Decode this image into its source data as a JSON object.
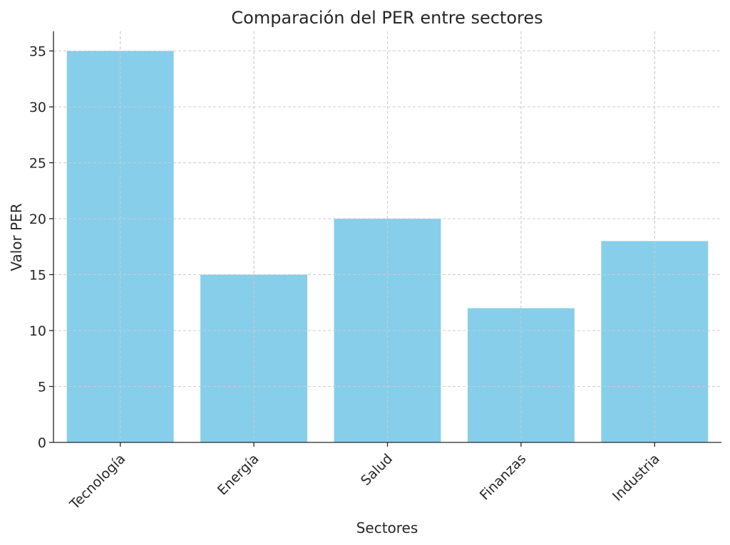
{
  "chart_data": {
    "type": "bar",
    "title": "Comparación del PER entre sectores",
    "xlabel": "Sectores",
    "ylabel": "Valor PER",
    "categories": [
      "Tecnología",
      "Energía",
      "Salud",
      "Finanzas",
      "Industria"
    ],
    "values": [
      35,
      15,
      20,
      12,
      18
    ],
    "ylim": [
      0,
      36.75
    ],
    "yticks": [
      0,
      5,
      10,
      15,
      20,
      25,
      30,
      35
    ],
    "grid": true,
    "bar_color": "#87ceeb",
    "legend": "none"
  }
}
